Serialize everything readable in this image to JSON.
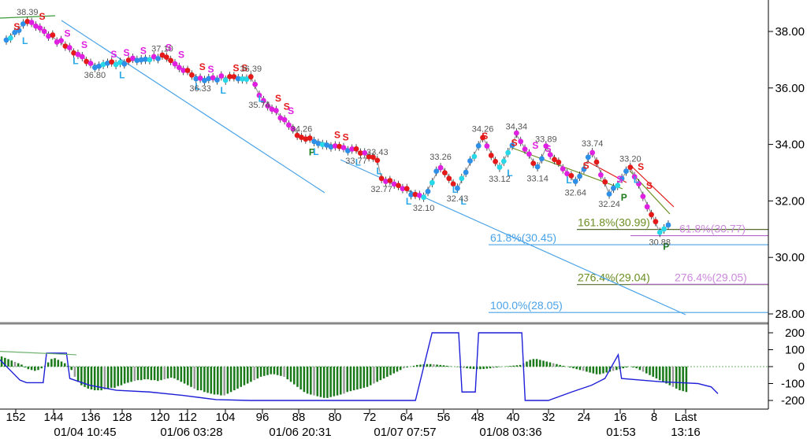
{
  "chart_data": [
    {
      "type": "candlestick",
      "y_axis": {
        "ticks": [
          28,
          30,
          32,
          34,
          36,
          38
        ],
        "tick_labels": [
          "28.00",
          "30.00",
          "32.00",
          "34.00",
          "36.00",
          "38.00"
        ],
        "range": [
          27.6,
          39.0
        ],
        "side": "right"
      },
      "x_axis": {
        "bar_ticks": [
          "152",
          "144",
          "136",
          "128",
          "120",
          "112",
          "104",
          "96",
          "88",
          "80",
          "72",
          "64",
          "56",
          "48",
          "40",
          "32",
          "24",
          "16",
          "8",
          "Last"
        ],
        "time_labels": [
          "01/04 10:45",
          "01/06 03:28",
          "01/06 20:31",
          "01/07 07:57",
          "01/08 03:36",
          "01:53",
          "13:16"
        ]
      },
      "swing_points": [
        {
          "bar": 5,
          "label": "38.39",
          "value": 38.39,
          "pos": "above"
        },
        {
          "bar": 21,
          "label": "36.80",
          "value": 36.8,
          "pos": "below"
        },
        {
          "bar": 37,
          "label": "37.10",
          "value": 37.1,
          "pos": "above"
        },
        {
          "bar": 46,
          "label": "36.33",
          "value": 36.33,
          "pos": "below"
        },
        {
          "bar": 58,
          "label": "36.39",
          "value": 36.39,
          "pos": "above"
        },
        {
          "bar": 60,
          "label": "35.74",
          "value": 35.74,
          "pos": "below"
        },
        {
          "bar": 70,
          "label": "34.26",
          "value": 34.26,
          "pos": "above"
        },
        {
          "bar": 83,
          "label": "33.77",
          "value": 33.77,
          "pos": "below"
        },
        {
          "bar": 88,
          "label": "33.43",
          "value": 33.43,
          "pos": "above"
        },
        {
          "bar": 89,
          "label": "32.77",
          "value": 32.77,
          "pos": "below"
        },
        {
          "bar": 99,
          "label": "32.10",
          "value": 32.1,
          "pos": "below"
        },
        {
          "bar": 103,
          "label": "33.26",
          "value": 33.26,
          "pos": "above"
        },
        {
          "bar": 107,
          "label": "32.43",
          "value": 32.43,
          "pos": "below"
        },
        {
          "bar": 113,
          "label": "34.26",
          "value": 34.26,
          "pos": "above"
        },
        {
          "bar": 117,
          "label": "33.12",
          "value": 33.12,
          "pos": "below"
        },
        {
          "bar": 121,
          "label": "34.34",
          "value": 34.34,
          "pos": "above"
        },
        {
          "bar": 126,
          "label": "33.14",
          "value": 33.14,
          "pos": "below"
        },
        {
          "bar": 128,
          "label": "33.89",
          "value": 33.89,
          "pos": "above"
        },
        {
          "bar": 135,
          "label": "32.64",
          "value": 32.64,
          "pos": "below"
        },
        {
          "bar": 139,
          "label": "33.74",
          "value": 33.74,
          "pos": "above"
        },
        {
          "bar": 143,
          "label": "32.24",
          "value": 32.24,
          "pos": "below"
        },
        {
          "bar": 148,
          "label": "33.20",
          "value": 33.2,
          "pos": "above"
        },
        {
          "bar": 155,
          "label": "30.88",
          "value": 30.88,
          "pos": "below"
        }
      ],
      "swing_path": [
        {
          "bar": 0,
          "value": 37.7
        },
        {
          "bar": 5,
          "value": 38.39
        },
        {
          "bar": 21,
          "value": 36.8
        },
        {
          "bar": 37,
          "value": 37.1
        },
        {
          "bar": 46,
          "value": 36.33
        },
        {
          "bar": 58,
          "value": 36.39
        },
        {
          "bar": 60,
          "value": 35.74
        },
        {
          "bar": 70,
          "value": 34.26
        },
        {
          "bar": 83,
          "value": 33.77
        },
        {
          "bar": 88,
          "value": 33.43
        },
        {
          "bar": 89,
          "value": 32.77
        },
        {
          "bar": 99,
          "value": 32.1
        },
        {
          "bar": 103,
          "value": 33.26
        },
        {
          "bar": 107,
          "value": 32.43
        },
        {
          "bar": 113,
          "value": 34.26
        },
        {
          "bar": 117,
          "value": 33.12
        },
        {
          "bar": 121,
          "value": 34.34
        },
        {
          "bar": 126,
          "value": 33.14
        },
        {
          "bar": 128,
          "value": 33.89
        },
        {
          "bar": 135,
          "value": 32.64
        },
        {
          "bar": 139,
          "value": 33.74
        },
        {
          "bar": 143,
          "value": 32.24
        },
        {
          "bar": 148,
          "value": 33.2
        },
        {
          "bar": 155,
          "value": 30.88
        },
        {
          "bar": 157,
          "value": 31.15
        }
      ],
      "signals": [
        {
          "bar": 1,
          "text": "S",
          "kind": "S-red"
        },
        {
          "bar": 7,
          "text": "S",
          "kind": "S-red"
        },
        {
          "bar": 3,
          "text": "L",
          "kind": "L"
        },
        {
          "bar": 13,
          "text": "S",
          "kind": "S-magenta"
        },
        {
          "bar": 17,
          "text": "S",
          "kind": "S-magenta"
        },
        {
          "bar": 15,
          "text": "L",
          "kind": "L"
        },
        {
          "bar": 24,
          "text": "S",
          "kind": "S-magenta"
        },
        {
          "bar": 27,
          "text": "S",
          "kind": "S-magenta"
        },
        {
          "bar": 31,
          "text": "S",
          "kind": "S-magenta"
        },
        {
          "bar": 26,
          "text": "L",
          "kind": "L"
        },
        {
          "bar": 37,
          "text": "S",
          "kind": "S-magenta"
        },
        {
          "bar": 40,
          "text": "S",
          "kind": "S-magenta"
        },
        {
          "bar": 44,
          "text": "L",
          "kind": "L"
        },
        {
          "bar": 45,
          "text": "S",
          "kind": "S-red"
        },
        {
          "bar": 47,
          "text": "S",
          "kind": "S-magenta"
        },
        {
          "bar": 50,
          "text": "L",
          "kind": "L"
        },
        {
          "bar": 53,
          "text": "S",
          "kind": "S-red"
        },
        {
          "bar": 55,
          "text": "S",
          "kind": "S-red"
        },
        {
          "bar": 59,
          "text": "L",
          "kind": "L"
        },
        {
          "bar": 63,
          "text": "S",
          "kind": "S-red"
        },
        {
          "bar": 65,
          "text": "S",
          "kind": "S-red"
        },
        {
          "bar": 66,
          "text": "S",
          "kind": "S-magenta"
        },
        {
          "bar": 71,
          "text": "P",
          "kind": "P"
        },
        {
          "bar": 72,
          "text": "L",
          "kind": "L"
        },
        {
          "bar": 77,
          "text": "S",
          "kind": "S-red"
        },
        {
          "bar": 79,
          "text": "S",
          "kind": "S-red"
        },
        {
          "bar": 82,
          "text": "L",
          "kind": "L"
        },
        {
          "bar": 87,
          "text": "L",
          "kind": "L"
        },
        {
          "bar": 94,
          "text": "L",
          "kind": "L"
        },
        {
          "bar": 105,
          "text": "L",
          "kind": "L"
        },
        {
          "bar": 107,
          "text": "L",
          "kind": "L"
        },
        {
          "bar": 112,
          "text": "S",
          "kind": "S-red"
        },
        {
          "bar": 118,
          "text": "L",
          "kind": "L"
        },
        {
          "bar": 119,
          "text": "S",
          "kind": "S-red"
        },
        {
          "bar": 124,
          "text": "S",
          "kind": "S-magenta"
        },
        {
          "bar": 127,
          "text": "S",
          "kind": "S-magenta"
        },
        {
          "bar": 132,
          "text": "L",
          "kind": "L"
        },
        {
          "bar": 136,
          "text": "S",
          "kind": "S-red"
        },
        {
          "bar": 144,
          "text": "S",
          "kind": "S-magenta"
        },
        {
          "bar": 149,
          "text": "S",
          "kind": "S-red"
        },
        {
          "bar": 145,
          "text": "P",
          "kind": "P"
        },
        {
          "bar": 148,
          "text": "L",
          "kind": "L"
        },
        {
          "bar": 151,
          "text": "S",
          "kind": "S-red"
        },
        {
          "bar": 155,
          "text": "P",
          "kind": "P"
        }
      ],
      "fib_levels": [
        {
          "label": "161.8%(30.99)",
          "value": 30.99,
          "color": "#6b8e23",
          "bar_start": 146
        },
        {
          "label": "61.8%(30.77)",
          "value": 30.77,
          "color": "#cc88dd",
          "bar_start": 157
        },
        {
          "label": "61.8%(30.45)",
          "value": 30.45,
          "color": "#4aa3e8",
          "bar_start": 124
        },
        {
          "label": "276.4%(29.04)",
          "value": 29.04,
          "color": "#6b8e23",
          "bar_start": 146
        },
        {
          "label": "276.4%(29.05)",
          "value": 29.05,
          "color": "#cc88dd",
          "bar_start": 157
        },
        {
          "label": "100.0%(28.05)",
          "value": 28.05,
          "color": "#4aa3e8",
          "bar_start": 124
        }
      ],
      "colors": {
        "up": "#2e8fe8",
        "down": "#e41a1a",
        "magenta": "#e020e0",
        "cyan": "#28d8e8",
        "fib_blue": "#4aa3e8",
        "fib_green": "#6b8e23",
        "fib_violet": "#cc88dd"
      }
    },
    {
      "type": "bar+line",
      "y_axis": {
        "ticks": [
          200,
          100,
          0,
          -100,
          -200
        ],
        "tick_labels": [
          "200",
          "100",
          "0",
          "-100",
          "-200"
        ],
        "range": [
          -230,
          230
        ],
        "side": "right"
      },
      "histogram": [
        60,
        52,
        44,
        36,
        28,
        20,
        12,
        -5,
        -15,
        -20,
        -25,
        -20,
        -10,
        5,
        25,
        45,
        50,
        40,
        30,
        20,
        5,
        -20,
        -60,
        -90,
        -110,
        -120,
        -130,
        -135,
        -140,
        -140,
        -140,
        -135,
        -130,
        -125,
        -125,
        -115,
        -110,
        -100,
        -95,
        -90,
        -85,
        -80,
        -80,
        -75,
        -75,
        -80,
        -80,
        -85,
        -80,
        -75,
        -70,
        -65,
        -70,
        -80,
        -90,
        -100,
        -110,
        -120,
        -130,
        -140,
        -140,
        -150,
        -155,
        -160,
        -165,
        -165,
        -170,
        -170,
        -160,
        -150,
        -140,
        -130,
        -120,
        -110,
        -100,
        -90,
        -80,
        -70,
        -60,
        -55,
        -50,
        -45,
        -45,
        -50,
        -55,
        -60,
        -75,
        -90,
        -105,
        -120,
        -135,
        -150,
        -160,
        -165,
        -170,
        -175,
        -180,
        -185,
        -185,
        -180,
        -175,
        -170,
        -165,
        -160,
        -150,
        -145,
        -140,
        -135,
        -130,
        -125,
        -120,
        -110,
        -100,
        -90,
        -80,
        -70,
        -60,
        -50,
        -40,
        -30,
        -20,
        -10,
        -5,
        0,
        5,
        10,
        12,
        14,
        15,
        15,
        14,
        12,
        10,
        8,
        5,
        2,
        0,
        -2,
        -5,
        -8,
        -10,
        -12,
        -14,
        -15,
        -15,
        -14,
        -12,
        -10,
        -8,
        -5,
        -2,
        0,
        2,
        4,
        6,
        8,
        10,
        20,
        30,
        40,
        45,
        45,
        40,
        35,
        30,
        25,
        20,
        15,
        10,
        5,
        0,
        -5,
        -10,
        -15,
        -20,
        -25,
        -30,
        -35,
        -40,
        -45,
        -45,
        -40,
        -35,
        -30,
        -25,
        -20,
        -15,
        -10,
        -5,
        0,
        -5,
        -10,
        -20,
        -30,
        -40,
        -50,
        -60,
        -70,
        -80,
        -90,
        -100,
        -110,
        -120,
        -130,
        -140,
        -145,
        -150
      ],
      "line": [
        {
          "i": 0,
          "v": 40
        },
        {
          "i": 6,
          "v": -80
        },
        {
          "i": 8,
          "v": -95
        },
        {
          "i": 10,
          "v": -95
        },
        {
          "i": 13,
          "v": -95
        },
        {
          "i": 14,
          "v": 80
        },
        {
          "i": 20,
          "v": 80
        },
        {
          "i": 21,
          "v": -70
        },
        {
          "i": 27,
          "v": -110
        },
        {
          "i": 35,
          "v": -140
        },
        {
          "i": 45,
          "v": -150
        },
        {
          "i": 55,
          "v": -170
        },
        {
          "i": 65,
          "v": -195
        },
        {
          "i": 75,
          "v": -200
        },
        {
          "i": 90,
          "v": -200
        },
        {
          "i": 125,
          "v": -200
        },
        {
          "i": 130,
          "v": 200
        },
        {
          "i": 138,
          "v": 200
        },
        {
          "i": 139,
          "v": -150
        },
        {
          "i": 143,
          "v": -150
        },
        {
          "i": 144,
          "v": 200
        },
        {
          "i": 157,
          "v": 200
        },
        {
          "i": 158,
          "v": -200
        },
        {
          "i": 165,
          "v": -200
        },
        {
          "i": 172,
          "v": -150
        },
        {
          "i": 178,
          "v": -110
        },
        {
          "i": 182,
          "v": -70
        },
        {
          "i": 186,
          "v": 70
        },
        {
          "i": 187,
          "v": -70
        },
        {
          "i": 193,
          "v": -80
        },
        {
          "i": 199,
          "v": -90
        },
        {
          "i": 205,
          "v": -95
        },
        {
          "i": 210,
          "v": -100
        },
        {
          "i": 214,
          "v": -120
        },
        {
          "i": 216,
          "v": -160
        }
      ],
      "signal_line": [
        {
          "i": 0,
          "v": 90
        },
        {
          "i": 23,
          "v": 70
        }
      ],
      "colors": {
        "bar": "#1a7a1a",
        "bar_alt": "#999999",
        "line": "#1f1fd8",
        "signal": "#6bb06b"
      }
    }
  ]
}
